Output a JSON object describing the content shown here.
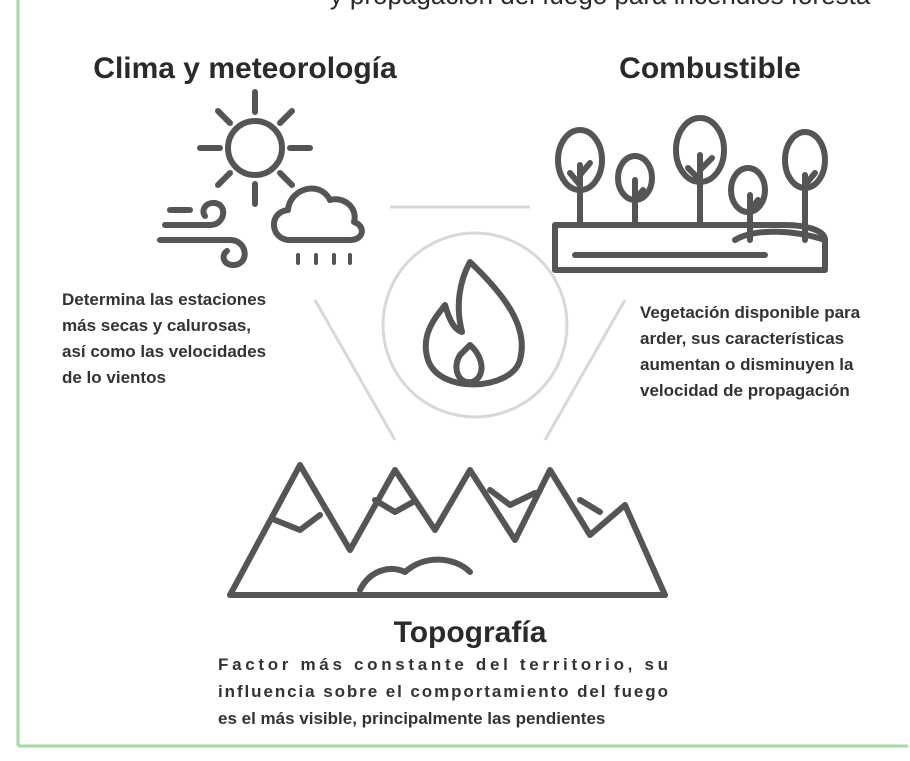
{
  "header": {
    "title": "y propagación del fuego para incendios foresta"
  },
  "sections": [
    {
      "title": "Clima y meteorología",
      "lines": [
        "Determina las estaciones",
        "más secas y calurosas,",
        "así como las velocidades",
        "de lo vientos"
      ]
    },
    {
      "title": "Combustible",
      "lines": [
        "Vegetación disponible para",
        "arder, sus características",
        "aumentan o disminuyen la",
        "velocidad de propagación"
      ]
    },
    {
      "title": "Topografía",
      "lines": [
        "Factor más constante del territorio, su",
        "influencia sobre el comportamiento del fuego",
        "es el más visible, principalmente las pendientes"
      ]
    }
  ]
}
